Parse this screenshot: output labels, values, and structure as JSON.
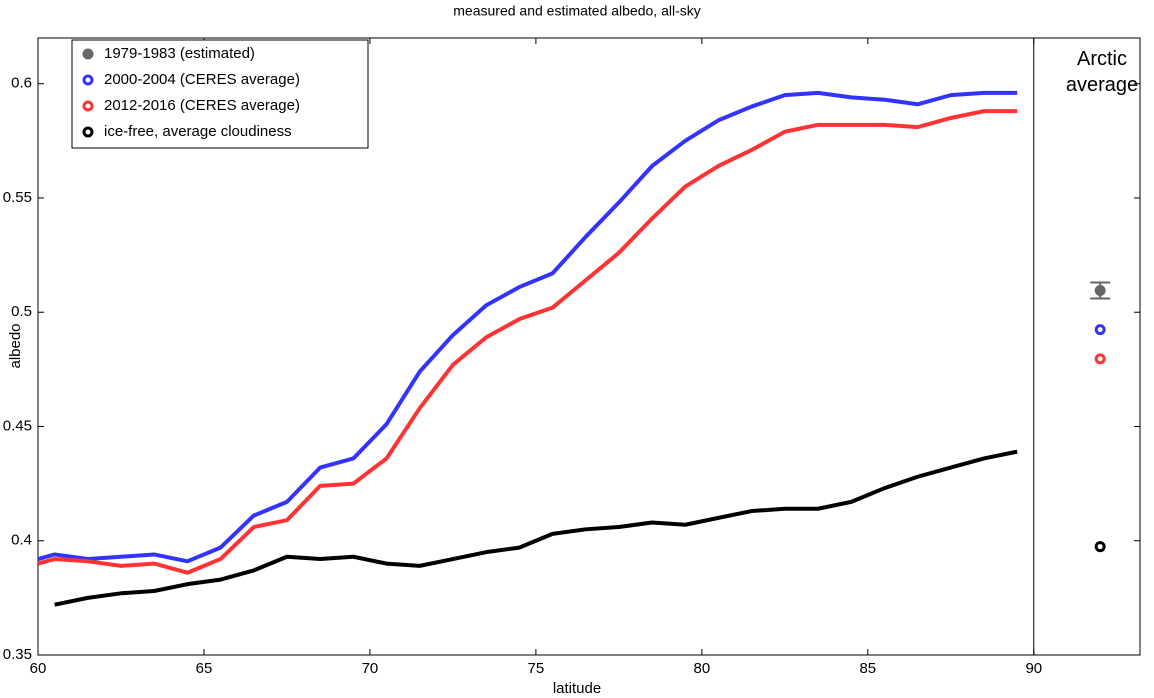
{
  "chart_data": {
    "type": "line",
    "title": "measured and estimated albedo, all-sky",
    "xlabel": "latitude",
    "ylabel": "albedo",
    "annotation": "Arctic average",
    "xlim": [
      60,
      93.2
    ],
    "ylim": [
      0.35,
      0.62
    ],
    "xticks": [
      60,
      65,
      70,
      75,
      80,
      85,
      90
    ],
    "yticks": [
      0.35,
      0.4,
      0.45,
      0.5,
      0.55,
      0.6
    ],
    "divider_x": 90,
    "average_x": 92,
    "legend": "upper left",
    "x": [
      60,
      60.5,
      61.5,
      62.5,
      63.5,
      64.5,
      65.5,
      66.5,
      67.5,
      68.5,
      69.5,
      70.5,
      71.5,
      72.5,
      73.5,
      74.5,
      75.5,
      76.5,
      77.5,
      78.5,
      79.5,
      80.5,
      81.5,
      82.5,
      83.5,
      84.5,
      85.5,
      86.5,
      87.5,
      88.5,
      89.5
    ],
    "series": [
      {
        "name": "1979-1983 (estimated)",
        "color": "#666666",
        "average": 0.5095,
        "average_error": 0.0035
      },
      {
        "name": "2000-2004 (CERES average)",
        "color": "#3333ff",
        "average": 0.4924,
        "values": [
          0.392,
          0.394,
          0.392,
          0.393,
          0.394,
          0.391,
          0.397,
          0.411,
          0.417,
          0.432,
          0.436,
          0.451,
          0.474,
          0.49,
          0.503,
          0.511,
          0.517,
          0.533,
          0.548,
          0.564,
          0.575,
          0.584,
          0.59,
          0.595,
          0.596,
          0.594,
          0.593,
          0.591,
          0.595,
          0.596,
          0.596
        ]
      },
      {
        "name": "2012-2016 (CERES average)",
        "color": "#ff3333",
        "average": 0.4796,
        "values": [
          0.39,
          0.392,
          0.391,
          0.389,
          0.39,
          0.386,
          0.392,
          0.406,
          0.409,
          0.424,
          0.425,
          0.436,
          0.458,
          0.477,
          0.489,
          0.497,
          0.502,
          0.514,
          0.526,
          0.541,
          0.555,
          0.564,
          0.571,
          0.579,
          0.582,
          0.582,
          0.582,
          0.581,
          0.585,
          0.588,
          0.588
        ]
      },
      {
        "name": "ice-free, average cloudiness",
        "color": "#000000",
        "average": 0.3974,
        "values": [
          null,
          0.372,
          0.375,
          0.377,
          0.378,
          0.381,
          0.383,
          0.387,
          0.393,
          0.392,
          0.393,
          0.39,
          0.389,
          0.392,
          0.395,
          0.397,
          0.403,
          0.405,
          0.406,
          0.408,
          0.407,
          0.41,
          0.413,
          0.414,
          0.414,
          0.417,
          0.423,
          0.428,
          0.432,
          0.436,
          0.439
        ]
      }
    ]
  }
}
